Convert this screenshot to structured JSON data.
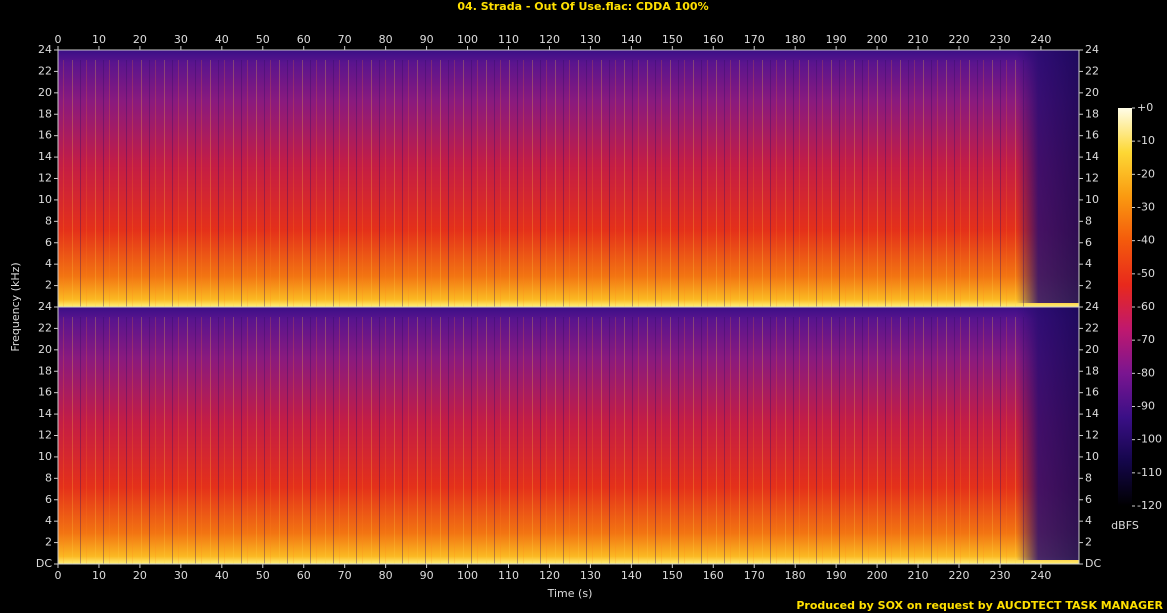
{
  "chart_data": {
    "type": "spectrogram",
    "title": "04. Strada - Out Of Use.flac: CDDA 100%",
    "xlabel": "Time (s)",
    "ylabel": "Frequency (kHz)",
    "xlim": [
      0,
      249.3
    ],
    "xticks": [
      0,
      10,
      20,
      30,
      40,
      50,
      60,
      70,
      80,
      90,
      100,
      110,
      120,
      130,
      140,
      150,
      160,
      170,
      180,
      190,
      200,
      210,
      220,
      230,
      240
    ],
    "channels": [
      {
        "ylim": [
          0,
          24
        ],
        "yticks": [
          2,
          4,
          6,
          8,
          10,
          12,
          14,
          16,
          18,
          20,
          22,
          24
        ]
      },
      {
        "ylim": [
          0,
          24
        ],
        "yticks": [
          {
            "value": 0,
            "label": "DC"
          },
          2,
          4,
          6,
          8,
          10,
          12,
          14,
          16,
          18,
          20,
          22,
          24
        ]
      }
    ],
    "colorbar": {
      "label": "dBFS",
      "lim": [
        -120,
        0
      ],
      "ticks": [
        {
          "value": 0,
          "label": "+0"
        },
        -10,
        -20,
        -30,
        -40,
        -50,
        -60,
        -70,
        -80,
        -90,
        -100,
        -110,
        -120
      ],
      "colors": [
        "#000000",
        "#14064a",
        "#3a0f86",
        "#7a1590",
        "#c0186e",
        "#e8291c",
        "#f45a0c",
        "#fa9a10",
        "#fdd835",
        "#fffde8"
      ]
    },
    "footer": "Produced by SOX on request by AUCDTECT TASK MANAGER"
  }
}
